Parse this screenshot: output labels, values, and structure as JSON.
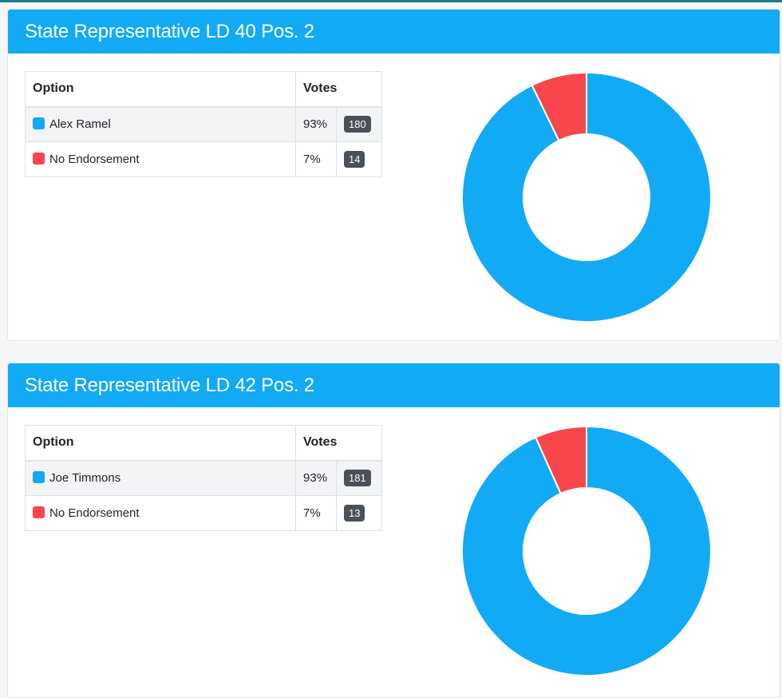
{
  "colors": {
    "accent": "#12aaf5",
    "candidate": "#12aaf5",
    "no_endorsement": "#f9464d"
  },
  "races": [
    {
      "title": "State Representative LD 40 Pos. 2",
      "columns": {
        "option": "Option",
        "votes": "Votes"
      },
      "rows": [
        {
          "name": "Alex Ramel",
          "percent": "93%",
          "votes": "180",
          "color": "#12aaf5"
        },
        {
          "name": "No Endorsement",
          "percent": "7%",
          "votes": "14",
          "color": "#f9464d"
        }
      ]
    },
    {
      "title": "State Representative LD 42 Pos. 2",
      "columns": {
        "option": "Option",
        "votes": "Votes"
      },
      "rows": [
        {
          "name": "Joe Timmons",
          "percent": "93%",
          "votes": "181",
          "color": "#12aaf5"
        },
        {
          "name": "No Endorsement",
          "percent": "7%",
          "votes": "13",
          "color": "#f9464d"
        }
      ]
    }
  ],
  "chart_data": [
    {
      "type": "pie",
      "categories": [
        "Alex Ramel",
        "No Endorsement"
      ],
      "values": [
        180,
        14
      ]
    },
    {
      "type": "pie",
      "categories": [
        "Joe Timmons",
        "No Endorsement"
      ],
      "values": [
        181,
        13
      ]
    }
  ]
}
